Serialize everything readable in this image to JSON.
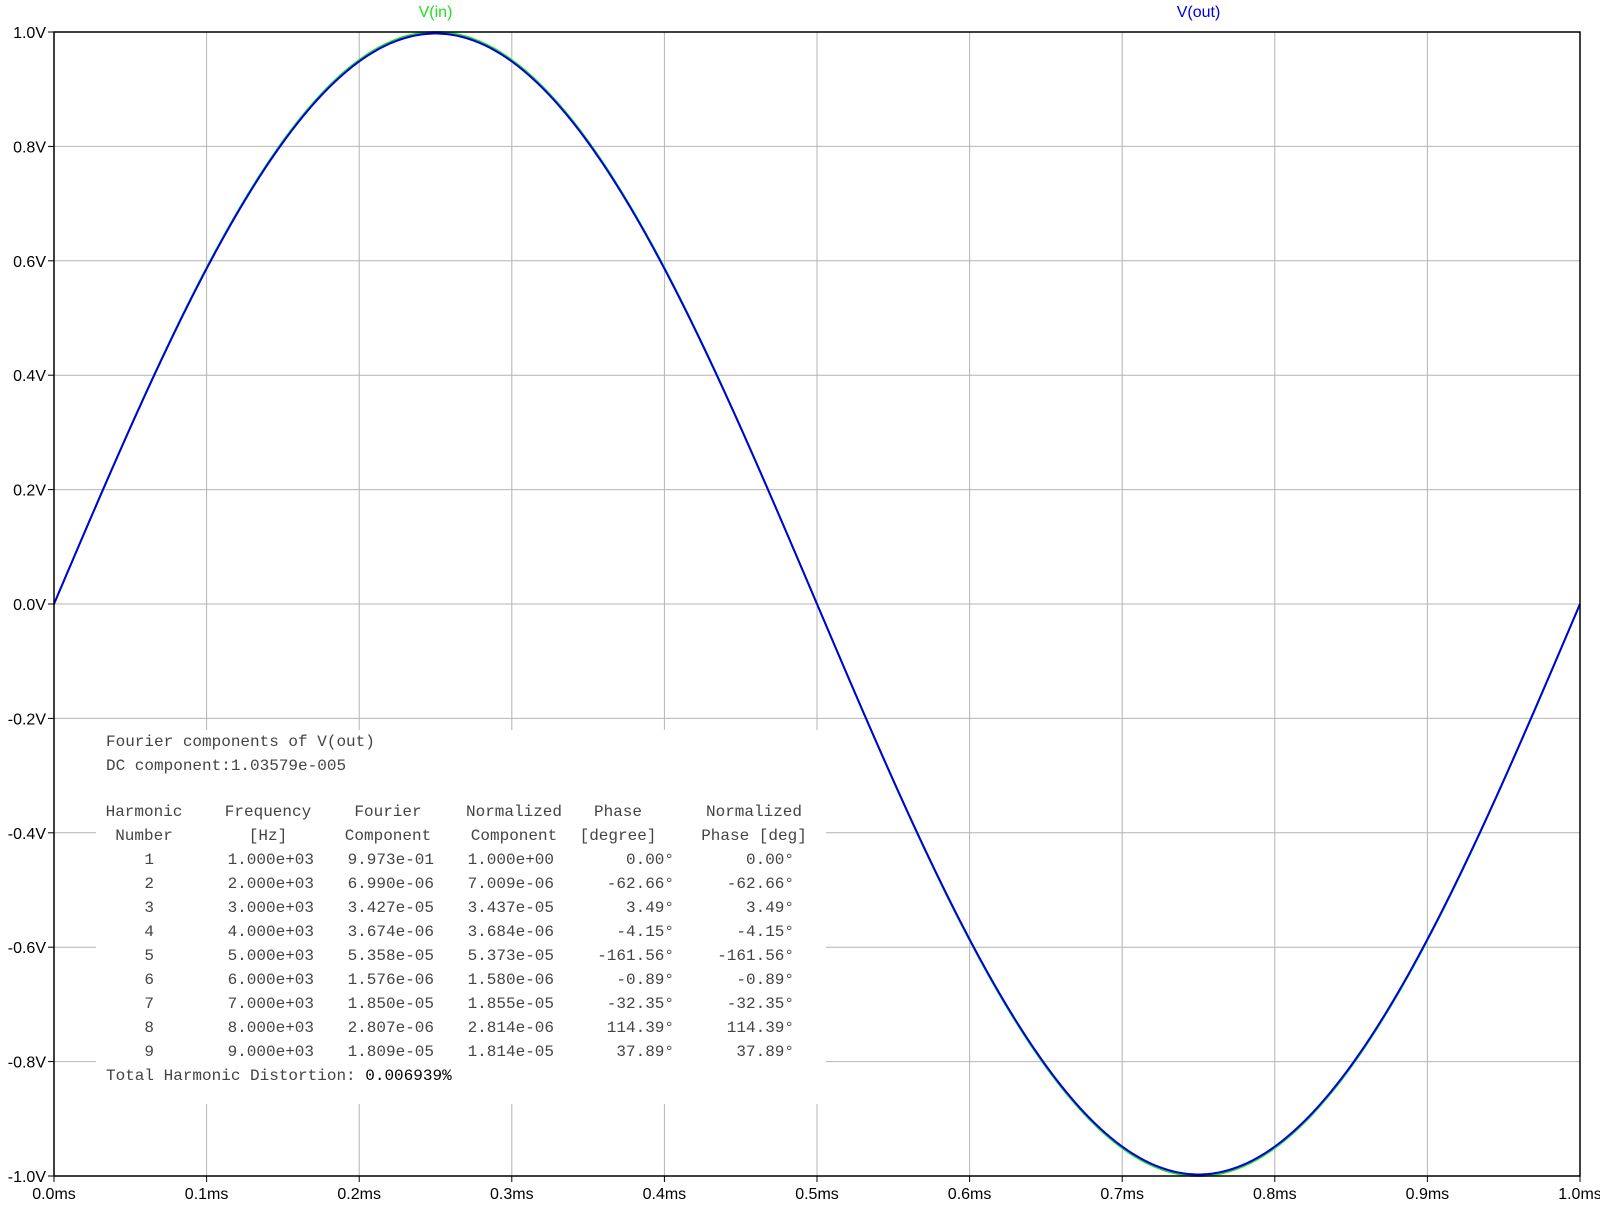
{
  "chart_data": {
    "type": "line",
    "title": "",
    "xlabel": "",
    "ylabel": "",
    "xlim": [
      0.0,
      1.0
    ],
    "ylim": [
      -1.0,
      1.0
    ],
    "grid": true,
    "legend_placement": "top",
    "x_ticks": [
      "0.0ms",
      "0.1ms",
      "0.2ms",
      "0.3ms",
      "0.4ms",
      "0.5ms",
      "0.6ms",
      "0.7ms",
      "0.8ms",
      "0.9ms",
      "1.0ms"
    ],
    "x_tick_values": [
      0.0,
      0.1,
      0.2,
      0.3,
      0.4,
      0.5,
      0.6,
      0.7,
      0.8,
      0.9,
      1.0
    ],
    "y_ticks": [
      "1.0V",
      "0.8V",
      "0.6V",
      "0.4V",
      "0.2V",
      "0.0V",
      "-0.2V",
      "-0.4V",
      "-0.6V",
      "-0.8V",
      "-1.0V"
    ],
    "y_tick_values": [
      1.0,
      0.8,
      0.6,
      0.4,
      0.2,
      0.0,
      -0.2,
      -0.4,
      -0.6,
      -0.8,
      -1.0
    ],
    "series": [
      {
        "name": "V(in)",
        "color": "#22dd22",
        "function": "sine",
        "amplitude": 1.0,
        "frequency_hz": 1000,
        "x_unit": "ms"
      },
      {
        "name": "V(out)",
        "color": "#0000dd",
        "function": "sine",
        "amplitude": 0.9973,
        "frequency_hz": 1000,
        "x_unit": "ms"
      }
    ]
  },
  "fourier": {
    "title": "Fourier components of V(out)",
    "dc": "DC component:1.03579e-005",
    "headers": {
      "line1": [
        "Harmonic",
        "Frequency",
        "Fourier",
        "Normalized",
        "Phase",
        "Normalized"
      ],
      "line2": [
        "Number",
        "[Hz]",
        "Component",
        "Component",
        "[degree]",
        "Phase [deg]"
      ]
    },
    "rows": [
      [
        "1",
        "1.000e+03",
        "9.973e-01",
        "1.000e+00",
        "0.00°",
        "0.00°"
      ],
      [
        "2",
        "2.000e+03",
        "6.990e-06",
        "7.009e-06",
        "-62.66°",
        "-62.66°"
      ],
      [
        "3",
        "3.000e+03",
        "3.427e-05",
        "3.437e-05",
        "3.49°",
        "3.49°"
      ],
      [
        "4",
        "4.000e+03",
        "3.674e-06",
        "3.684e-06",
        "-4.15°",
        "-4.15°"
      ],
      [
        "5",
        "5.000e+03",
        "5.358e-05",
        "5.373e-05",
        "-161.56°",
        "-161.56°"
      ],
      [
        "6",
        "6.000e+03",
        "1.576e-06",
        "1.580e-06",
        "-0.89°",
        "-0.89°"
      ],
      [
        "7",
        "7.000e+03",
        "1.850e-05",
        "1.855e-05",
        "-32.35°",
        "-32.35°"
      ],
      [
        "8",
        "8.000e+03",
        "2.807e-06",
        "2.814e-06",
        "114.39°",
        "114.39°"
      ],
      [
        "9",
        "9.000e+03",
        "1.809e-05",
        "1.814e-05",
        "37.89°",
        "37.89°"
      ]
    ],
    "thd_label": "Total Harmonic Distortion:",
    "thd_value": "0.006939%"
  }
}
